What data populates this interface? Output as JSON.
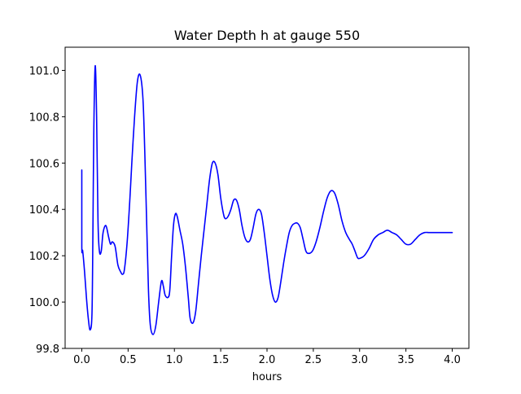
{
  "chart_data": {
    "type": "line",
    "title": "Water Depth h at gauge 550",
    "xlabel": "hours",
    "ylabel": "",
    "xlim": [
      -0.18,
      4.18
    ],
    "ylim": [
      99.8,
      101.1
    ],
    "xticks": [
      0.0,
      0.5,
      1.0,
      1.5,
      2.0,
      2.5,
      3.0,
      3.5,
      4.0
    ],
    "xtick_labels": [
      "0.0",
      "0.5",
      "1.0",
      "1.5",
      "2.0",
      "2.5",
      "3.0",
      "3.5",
      "4.0"
    ],
    "yticks": [
      99.8,
      100.0,
      100.2,
      100.4,
      100.6,
      100.8,
      101.0
    ],
    "ytick_labels": [
      "99.8",
      "100.0",
      "100.2",
      "100.4",
      "100.6",
      "100.8",
      "101.0"
    ],
    "grid": false,
    "legend": "none",
    "series": [
      {
        "color": "#0000ff",
        "x": [
          0.0,
          0.0,
          0.01,
          0.03,
          0.05,
          0.07,
          0.09,
          0.11,
          0.12,
          0.13,
          0.145,
          0.16,
          0.175,
          0.19,
          0.21,
          0.23,
          0.26,
          0.29,
          0.31,
          0.33,
          0.36,
          0.39,
          0.42,
          0.44,
          0.46,
          0.49,
          0.52,
          0.54,
          0.57,
          0.6,
          0.63,
          0.66,
          0.68,
          0.7,
          0.72,
          0.74,
          0.77,
          0.8,
          0.83,
          0.86,
          0.88,
          0.9,
          0.93,
          0.95,
          0.97,
          0.99,
          1.01,
          1.03,
          1.06,
          1.09,
          1.12,
          1.15,
          1.17,
          1.2,
          1.23,
          1.26,
          1.29,
          1.32,
          1.35,
          1.38,
          1.41,
          1.44,
          1.47,
          1.5,
          1.53,
          1.55,
          1.58,
          1.61,
          1.64,
          1.67,
          1.7,
          1.73,
          1.76,
          1.79,
          1.82,
          1.85,
          1.88,
          1.91,
          1.94,
          1.97,
          2.0,
          2.03,
          2.06,
          2.09,
          2.12,
          2.15,
          2.18,
          2.21,
          2.24,
          2.27,
          2.3,
          2.33,
          2.36,
          2.39,
          2.42,
          2.45,
          2.49,
          2.53,
          2.57,
          2.61,
          2.65,
          2.69,
          2.73,
          2.77,
          2.81,
          2.85,
          2.89,
          2.92,
          2.95,
          2.98,
          3.01,
          3.05,
          3.1,
          3.15,
          3.2,
          3.25,
          3.3,
          3.35,
          3.4,
          3.45,
          3.5,
          3.55,
          3.6,
          3.65,
          3.7,
          3.75,
          3.8,
          3.85,
          3.9,
          3.95,
          4.0
        ],
        "y": [
          100.57,
          100.24,
          100.22,
          100.13,
          100.02,
          99.93,
          99.88,
          99.95,
          100.3,
          100.75,
          101.02,
          100.8,
          100.35,
          100.22,
          100.22,
          100.3,
          100.33,
          100.28,
          100.25,
          100.26,
          100.24,
          100.16,
          100.13,
          100.12,
          100.14,
          100.26,
          100.45,
          100.6,
          100.8,
          100.95,
          100.98,
          100.88,
          100.65,
          100.35,
          100.05,
          99.9,
          99.86,
          99.9,
          100.0,
          100.09,
          100.07,
          100.03,
          100.02,
          100.05,
          100.2,
          100.33,
          100.38,
          100.37,
          100.31,
          100.25,
          100.15,
          100.02,
          99.93,
          99.91,
          99.96,
          100.08,
          100.2,
          100.31,
          100.42,
          100.53,
          100.6,
          100.6,
          100.55,
          100.45,
          100.38,
          100.36,
          100.37,
          100.4,
          100.44,
          100.44,
          100.4,
          100.33,
          100.28,
          100.26,
          100.27,
          100.32,
          100.38,
          100.4,
          100.38,
          100.3,
          100.2,
          100.1,
          100.03,
          100.0,
          100.02,
          100.09,
          100.17,
          100.24,
          100.3,
          100.33,
          100.34,
          100.34,
          100.32,
          100.27,
          100.22,
          100.21,
          100.22,
          100.26,
          100.32,
          100.39,
          100.45,
          100.48,
          100.47,
          100.42,
          100.35,
          100.3,
          100.27,
          100.25,
          100.22,
          100.19,
          100.19,
          100.2,
          100.23,
          100.27,
          100.29,
          100.3,
          100.31,
          100.3,
          100.29,
          100.27,
          100.25,
          100.25,
          100.27,
          100.29,
          100.3,
          100.3,
          100.3,
          100.3,
          100.3,
          100.3,
          100.3
        ]
      }
    ]
  }
}
